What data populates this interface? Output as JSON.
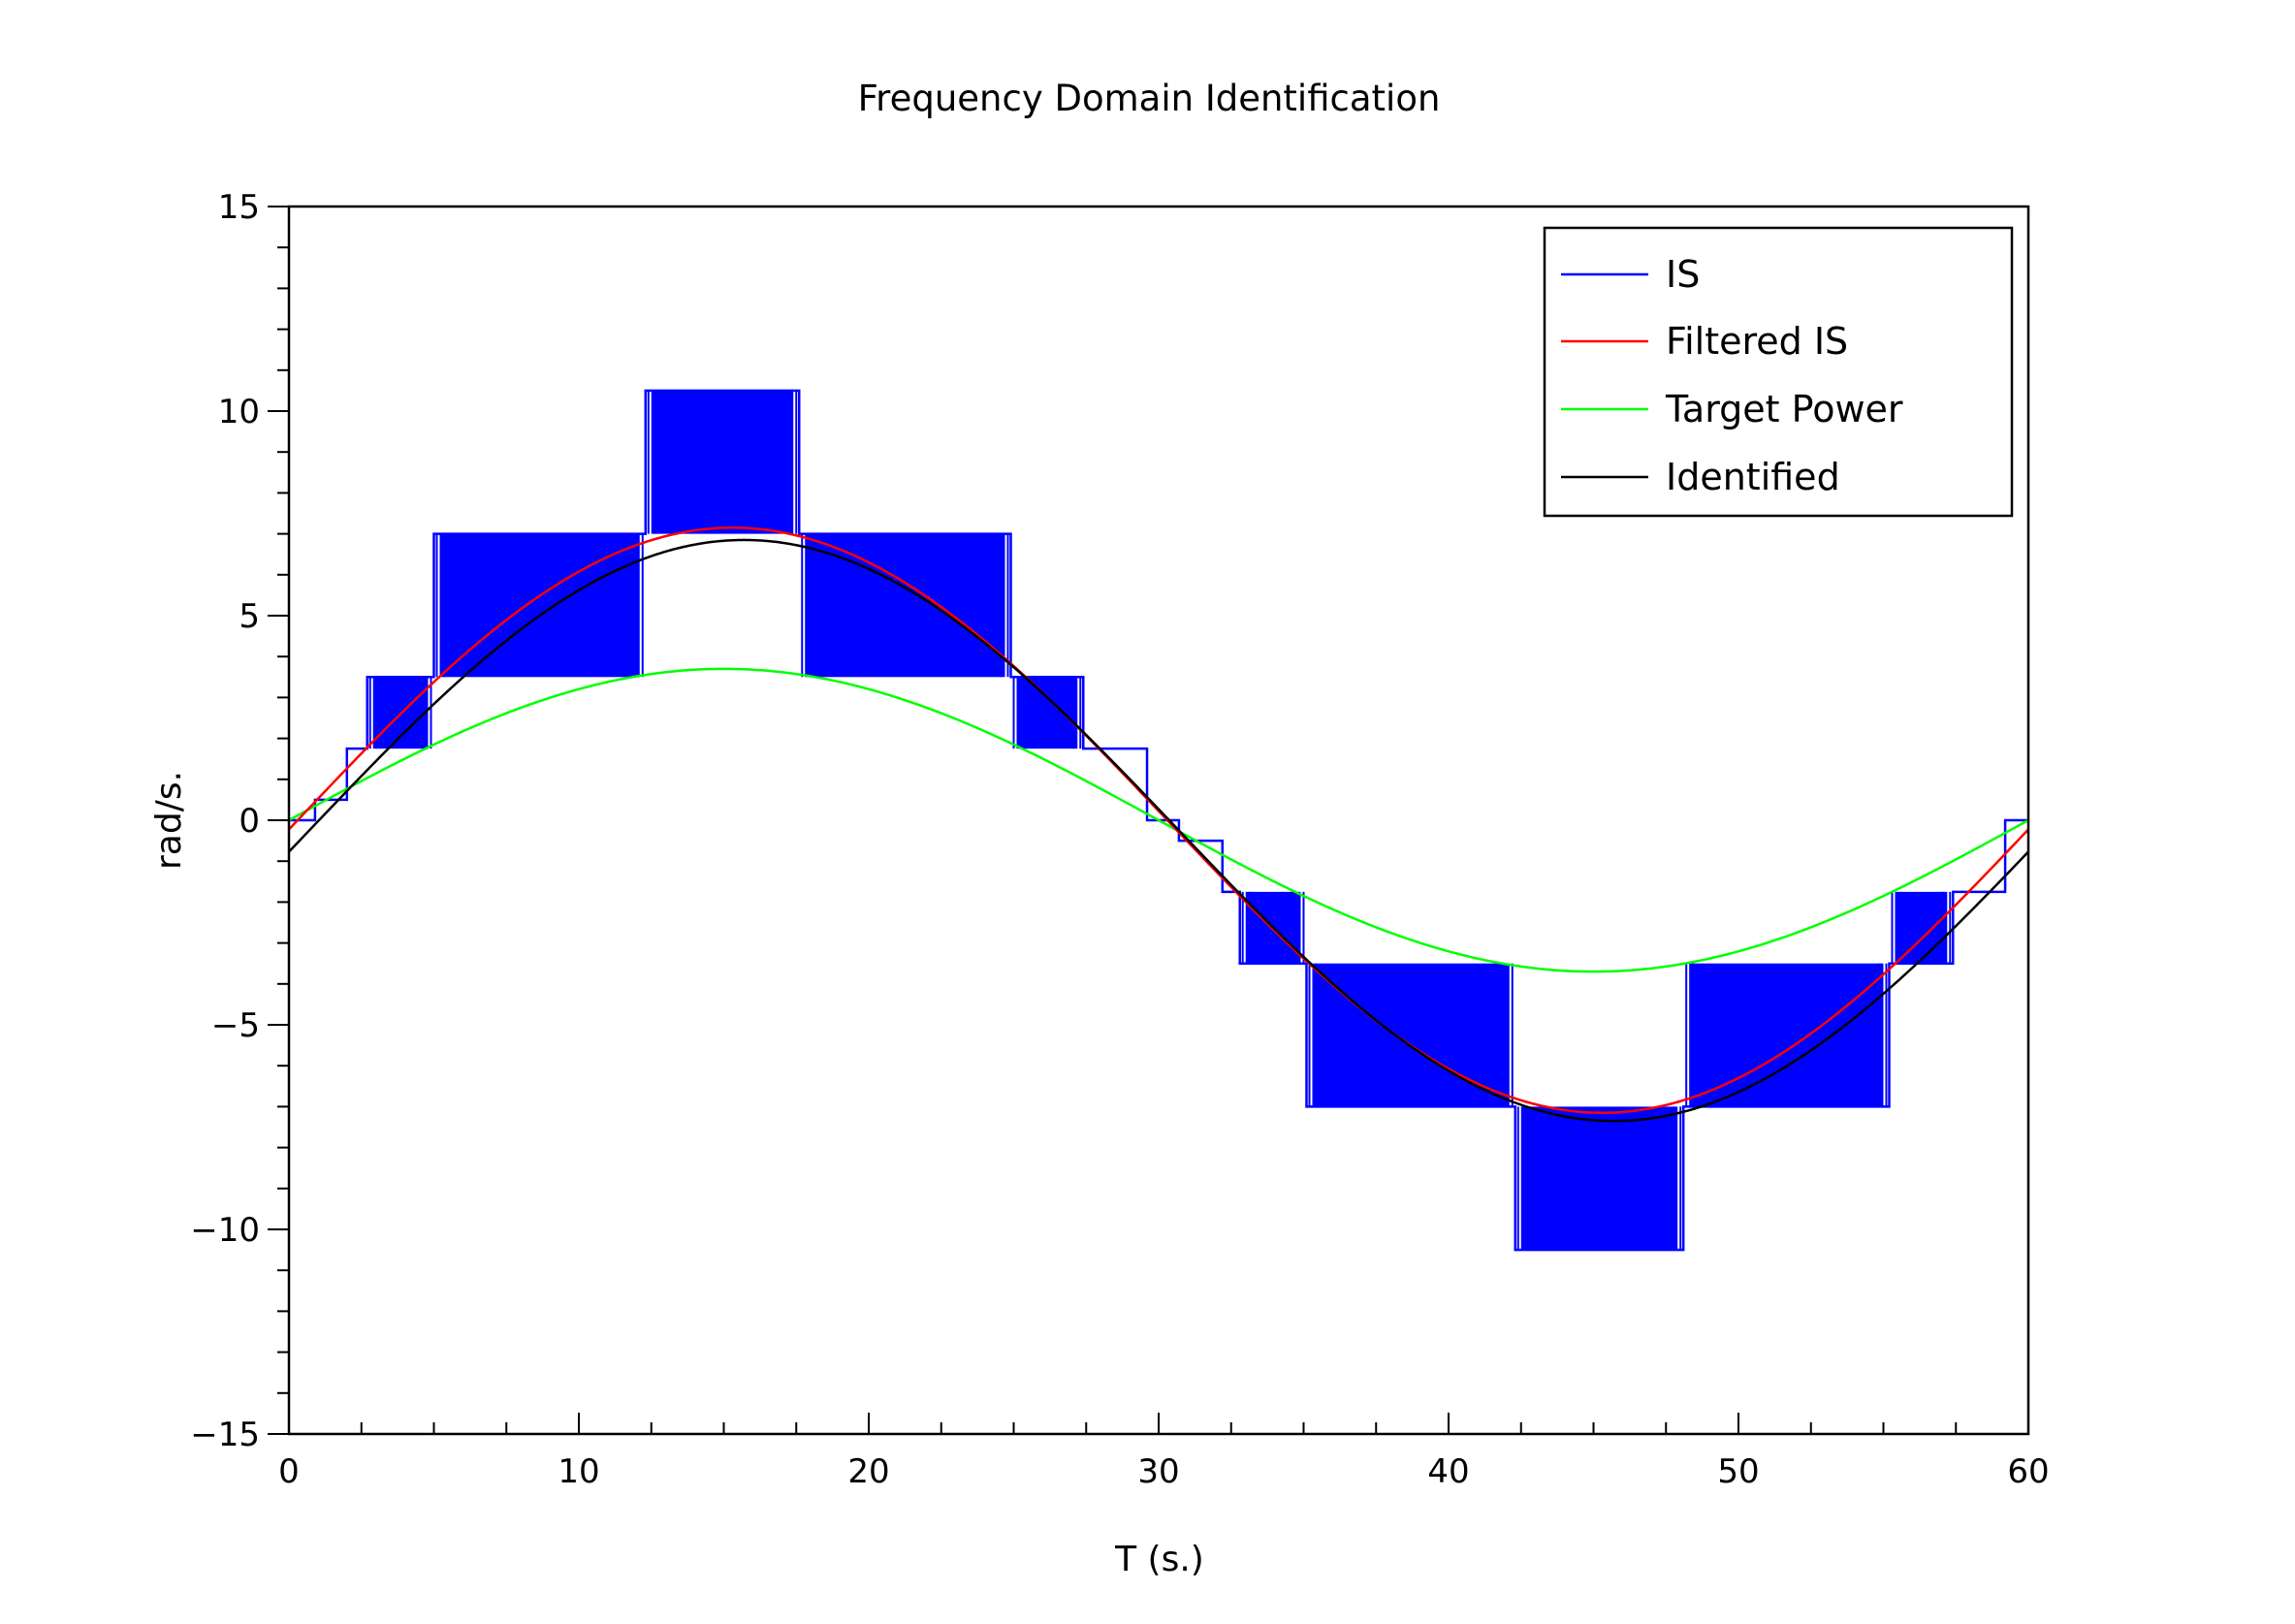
{
  "chart_data": {
    "type": "line",
    "title": "Frequency Domain Identification",
    "xlabel": "T (s.)",
    "ylabel": "rad/s.",
    "xlim": [
      0,
      60
    ],
    "ylim": [
      -15,
      15
    ],
    "x_ticks": [
      0,
      10,
      20,
      30,
      40,
      50,
      60
    ],
    "y_ticks": [
      -15,
      -10,
      -5,
      0,
      5,
      10,
      15
    ],
    "x_tick_labels": [
      "0",
      "10",
      "20",
      "30",
      "40",
      "50",
      "60"
    ],
    "y_tick_labels": [
      "−15",
      "−10",
      "−5",
      "0",
      "5",
      "10",
      "15"
    ],
    "grid": false,
    "legend_position": "top-right",
    "colors": {
      "is": "#0000ff",
      "filtered_is": "#ff0000",
      "target_power": "#00ff00",
      "identified": "#000000"
    },
    "series": [
      {
        "name": "IS",
        "kind": "step",
        "steps": [
          {
            "t0": 0.0,
            "t1": 0.9,
            "level": 0.0
          },
          {
            "t0": 0.9,
            "t1": 2.0,
            "level": 0.5
          },
          {
            "t0": 2.0,
            "t1": 2.7,
            "level": 1.75
          },
          {
            "t0": 2.7,
            "t1": 5.0,
            "level": 3.5,
            "alt": 1.75
          },
          {
            "t0": 5.0,
            "t1": 12.3,
            "level": 7.0,
            "alt": 3.5
          },
          {
            "t0": 12.3,
            "t1": 17.6,
            "level": 10.5,
            "alt": 7.0
          },
          {
            "t0": 17.6,
            "t1": 24.9,
            "level": 7.0,
            "alt": 3.5
          },
          {
            "t0": 24.9,
            "t1": 27.4,
            "level": 3.5,
            "alt": 1.75
          },
          {
            "t0": 27.4,
            "t1": 29.6,
            "level": 1.75
          },
          {
            "t0": 29.6,
            "t1": 30.7,
            "level": 0.0
          },
          {
            "t0": 30.7,
            "t1": 32.2,
            "level": -0.5
          },
          {
            "t0": 32.2,
            "t1": 32.8,
            "level": -1.75
          },
          {
            "t0": 32.8,
            "t1": 35.1,
            "level": -3.5,
            "alt": -1.75
          },
          {
            "t0": 35.1,
            "t1": 42.3,
            "level": -7.0,
            "alt": -3.5
          },
          {
            "t0": 42.3,
            "t1": 48.1,
            "level": -10.5,
            "alt": -7.0
          },
          {
            "t0": 48.1,
            "t1": 55.2,
            "level": -7.0,
            "alt": -3.5
          },
          {
            "t0": 55.2,
            "t1": 57.4,
            "level": -3.5,
            "alt": -1.75
          },
          {
            "t0": 57.4,
            "t1": 59.2,
            "level": -1.75
          },
          {
            "t0": 59.2,
            "t1": 60.0,
            "level": 0.0
          }
        ]
      },
      {
        "name": "Filtered IS",
        "kind": "sine",
        "amplitude": 7.15,
        "offset": 0.0,
        "period": 60.0,
        "phase_shift": 0.3,
        "x": [
          0,
          5,
          10,
          15,
          20,
          25,
          30,
          35,
          40,
          45,
          50,
          55,
          60
        ],
        "y": [
          0.0,
          3.4,
          6.1,
          7.15,
          6.2,
          3.6,
          0.0,
          -3.5,
          -6.2,
          -7.15,
          -6.2,
          -3.6,
          -0.05
        ]
      },
      {
        "name": "Target Power",
        "kind": "sine",
        "amplitude": 3.7,
        "offset": 0.0,
        "period": 60.0,
        "phase_shift": 0.0,
        "x": [
          0,
          5,
          10,
          15,
          20,
          25,
          30,
          35,
          40,
          45,
          50,
          55,
          60
        ],
        "y": [
          0.0,
          1.85,
          3.2,
          3.7,
          3.2,
          1.85,
          0.0,
          -1.85,
          -3.2,
          -3.7,
          -3.2,
          -1.85,
          0.0
        ]
      },
      {
        "name": "Identified",
        "kind": "sine",
        "amplitude": 7.1,
        "offset": -0.25,
        "period": 60.0,
        "phase_shift": 0.7,
        "x": [
          0,
          5,
          10,
          15,
          20,
          25,
          30,
          35,
          40,
          45,
          50,
          55,
          60
        ],
        "y": [
          -0.2,
          3.3,
          5.9,
          6.85,
          6.2,
          3.9,
          0.4,
          -3.2,
          -6.0,
          -7.3,
          -6.6,
          -4.3,
          -0.6
        ]
      }
    ]
  }
}
